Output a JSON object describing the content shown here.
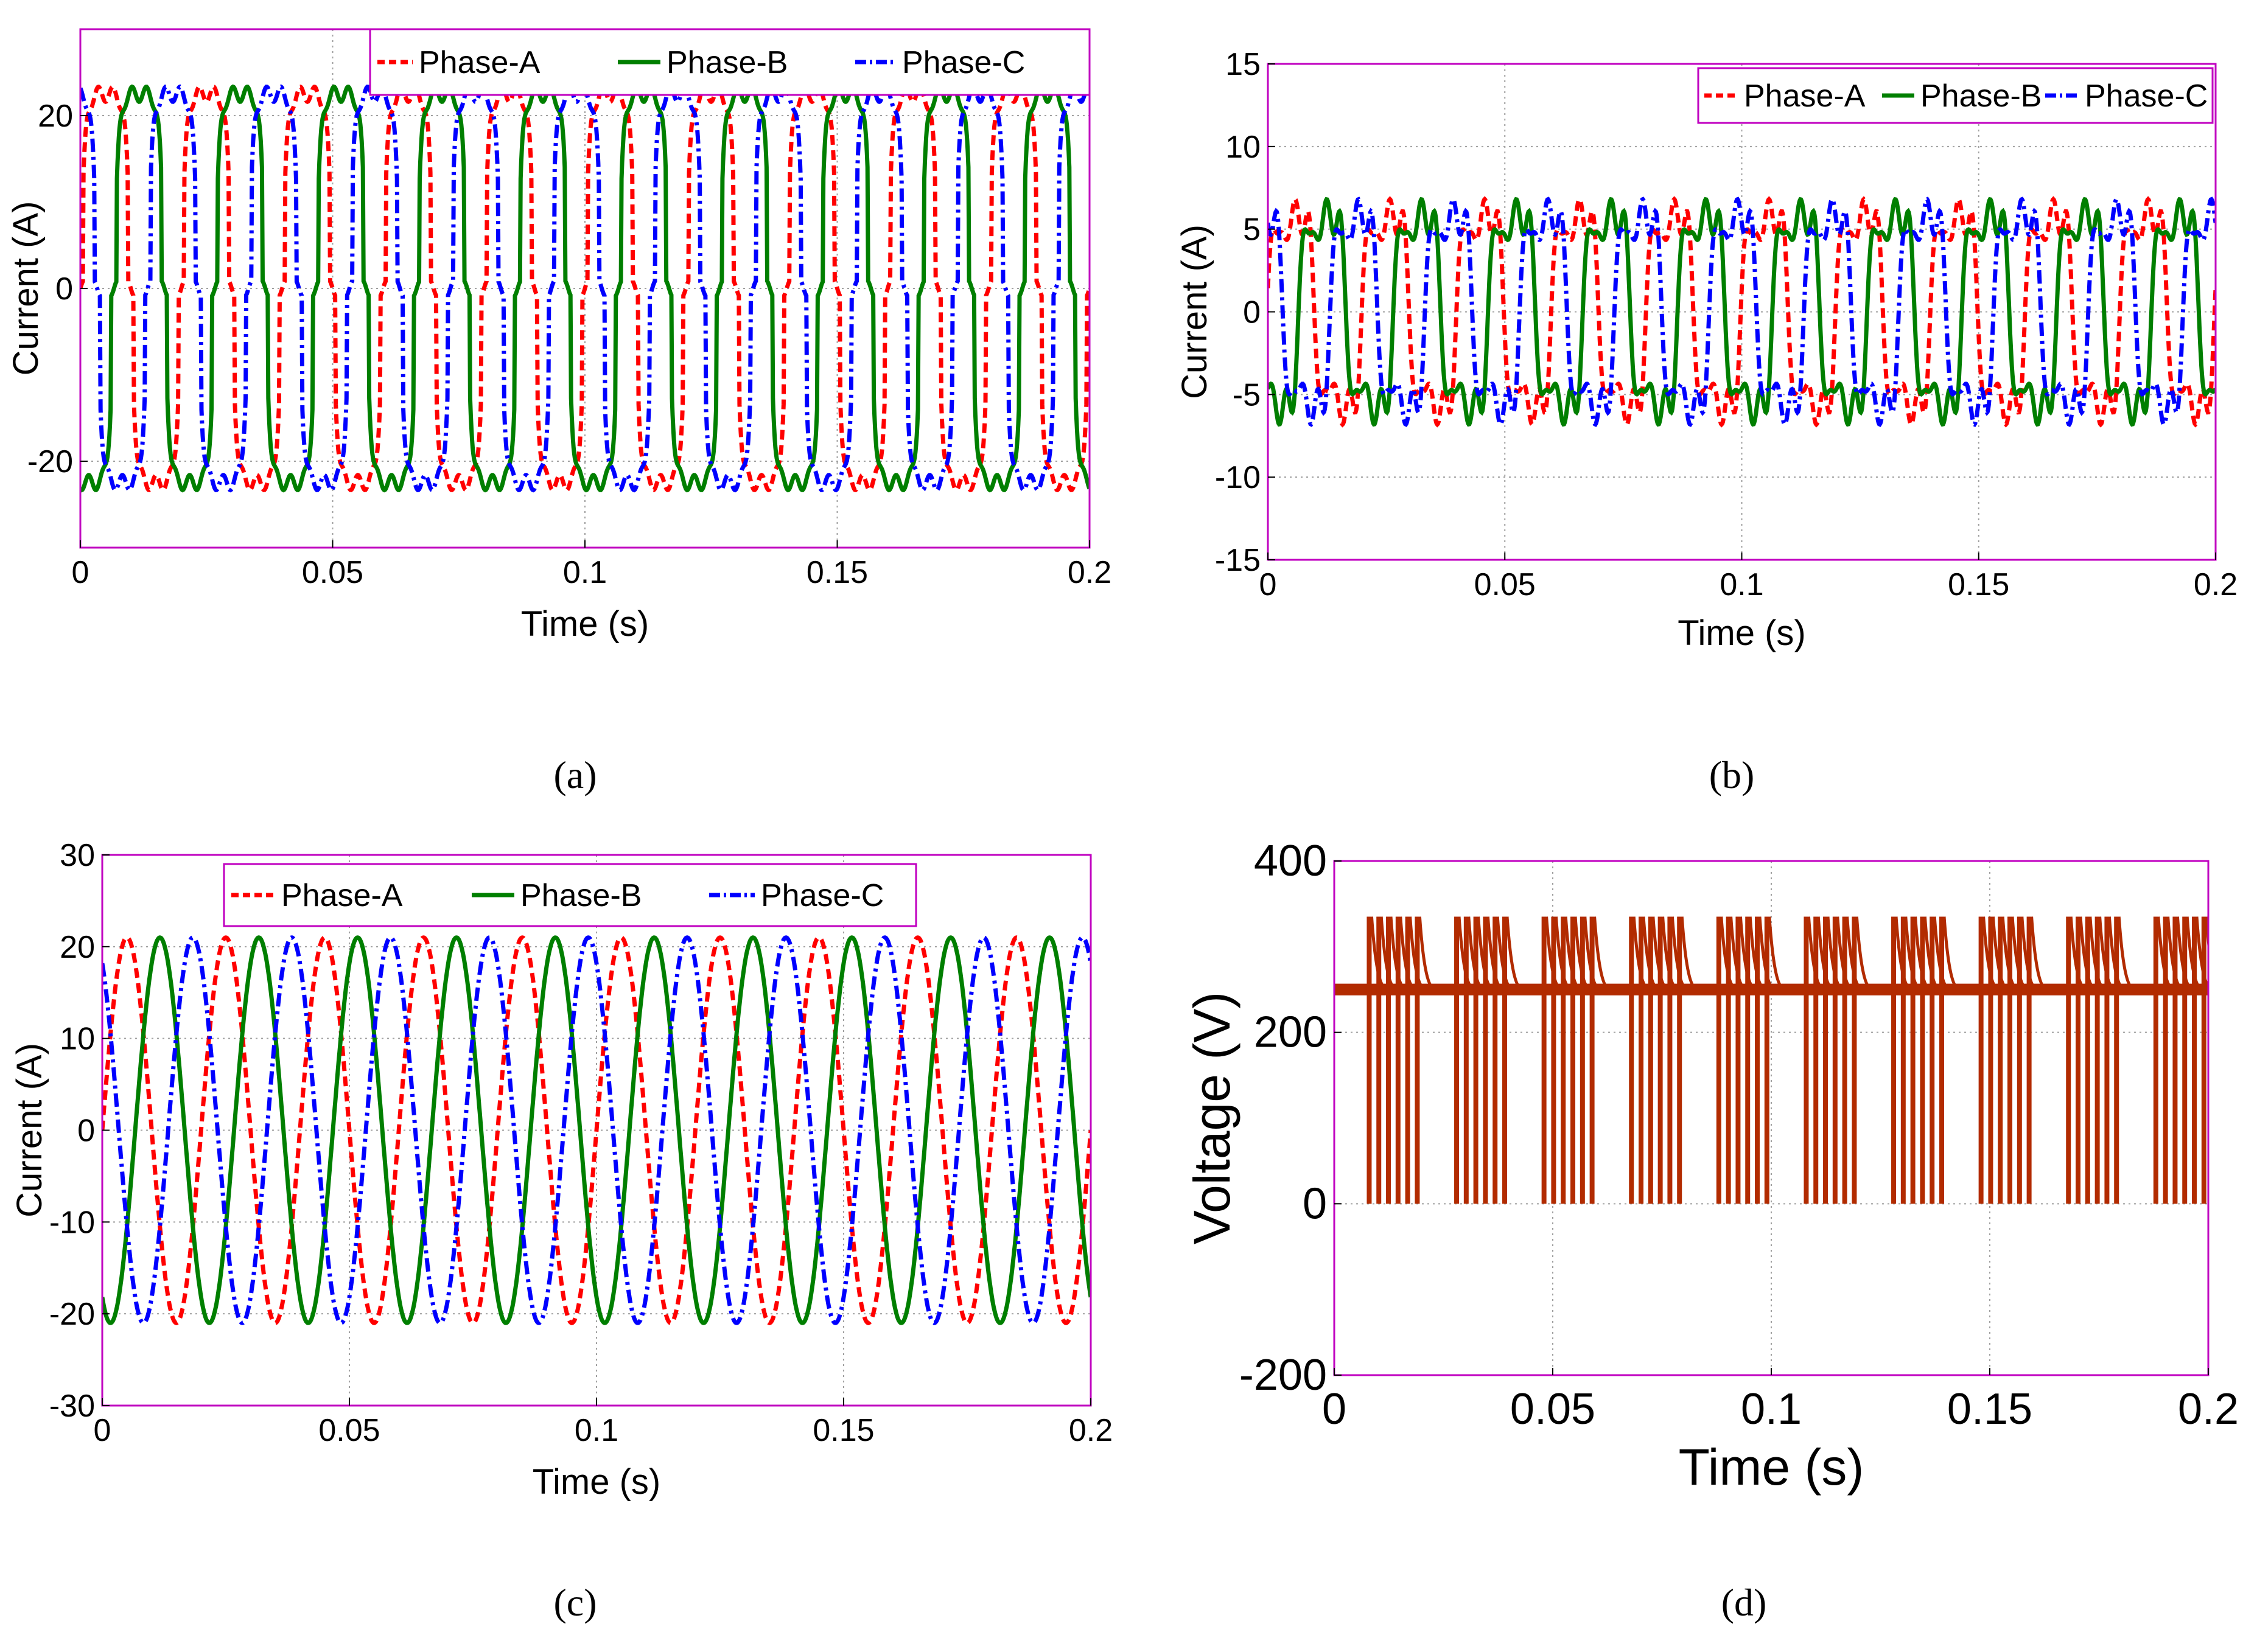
{
  "figure": {
    "captions": [
      "(a)",
      "(b)",
      "(c)",
      "(d)"
    ]
  },
  "colors": {
    "phase_a": "#ff0000",
    "phase_b": "#007f00",
    "phase_c": "#0000ff",
    "voltage": "#b22b00",
    "frame": "#c000c0",
    "grid": "#a0a0a0"
  },
  "chart_data": [
    {
      "id": "a",
      "type": "line",
      "title": "",
      "xlabel": "Time (s)",
      "ylabel": "Current (A)",
      "xlim": [
        0,
        0.2
      ],
      "ylim": [
        -30,
        30
      ],
      "xticks": [
        0,
        0.05,
        0.1,
        0.15,
        0.2
      ],
      "xtick_labels": [
        "0",
        "0.05",
        "0.1",
        "0.15",
        "0.2"
      ],
      "yticks": [
        -20,
        0,
        20
      ],
      "ytick_labels": [
        "-20",
        "0",
        "20"
      ],
      "legend": [
        "Phase-A",
        "Phase-B",
        "Phase-C"
      ],
      "legend_position": "top-right",
      "waveform": "quasi-square",
      "frequency_hz": 50,
      "amplitude": 22.5,
      "series": [
        {
          "name": "Phase-A",
          "style": "dashed",
          "phase_deg": 0
        },
        {
          "name": "Phase-B",
          "style": "solid",
          "phase_deg": -120
        },
        {
          "name": "Phase-C",
          "style": "dash-dot",
          "phase_deg": 120
        }
      ]
    },
    {
      "id": "b",
      "type": "line",
      "title": "",
      "xlabel": "Time (s)",
      "ylabel": "Current (A)",
      "xlim": [
        0,
        0.2
      ],
      "ylim": [
        -15,
        15
      ],
      "xticks": [
        0,
        0.05,
        0.1,
        0.15,
        0.2
      ],
      "xtick_labels": [
        "0",
        "0.05",
        "0.1",
        "0.15",
        "0.2"
      ],
      "yticks": [
        -15,
        -10,
        -5,
        0,
        5,
        10,
        15
      ],
      "ytick_labels": [
        "-15",
        "-10",
        "-5",
        "0",
        "5",
        "10",
        "15"
      ],
      "legend": [
        "Phase-A",
        "Phase-B",
        "Phase-C"
      ],
      "legend_position": "top-right",
      "waveform": "distorted",
      "frequency_hz": 50,
      "amplitude": 8.5,
      "series": [
        {
          "name": "Phase-A",
          "style": "dashed",
          "phase_deg": 0
        },
        {
          "name": "Phase-B",
          "style": "solid",
          "phase_deg": -120
        },
        {
          "name": "Phase-C",
          "style": "dash-dot",
          "phase_deg": 120
        }
      ]
    },
    {
      "id": "c",
      "type": "line",
      "title": "",
      "xlabel": "Time (s)",
      "ylabel": "Current (A)",
      "xlim": [
        0,
        0.2
      ],
      "ylim": [
        -30,
        30
      ],
      "xticks": [
        0,
        0.05,
        0.1,
        0.15,
        0.2
      ],
      "xtick_labels": [
        "0",
        "0.05",
        "0.1",
        "0.15",
        "0.2"
      ],
      "yticks": [
        -30,
        -20,
        -10,
        0,
        10,
        20,
        30
      ],
      "ytick_labels": [
        "-30",
        "-20",
        "-10",
        "0",
        "10",
        "20",
        "30"
      ],
      "legend": [
        "Phase-A",
        "Phase-B",
        "Phase-C"
      ],
      "legend_position": "top-center",
      "waveform": "sine",
      "frequency_hz": 50,
      "amplitude": 21,
      "series": [
        {
          "name": "Phase-A",
          "style": "dashed",
          "phase_deg": 0
        },
        {
          "name": "Phase-B",
          "style": "solid",
          "phase_deg": -120
        },
        {
          "name": "Phase-C",
          "style": "dash-dot",
          "phase_deg": 120
        }
      ]
    },
    {
      "id": "d",
      "type": "line",
      "title": "",
      "xlabel": "Time (s)",
      "ylabel": "Voltage (V)",
      "xlim": [
        0,
        0.2
      ],
      "ylim": [
        -200,
        400
      ],
      "xticks": [
        0,
        0.05,
        0.1,
        0.15,
        0.2
      ],
      "xtick_labels": [
        "0",
        "0.05",
        "0.1",
        "0.15",
        "0.2"
      ],
      "yticks": [
        -200,
        0,
        200,
        400
      ],
      "ytick_labels": [
        "-200",
        "0",
        "200",
        "400"
      ],
      "legend": [],
      "waveform": "pwm-pulses",
      "series": [
        {
          "name": "Voltage",
          "style": "solid",
          "baseline": 250,
          "peak": 335,
          "low": 0,
          "burst_times": [
            0.014,
            0.034,
            0.054,
            0.074,
            0.094,
            0.114,
            0.134,
            0.154,
            0.174,
            0.194
          ]
        }
      ]
    }
  ]
}
